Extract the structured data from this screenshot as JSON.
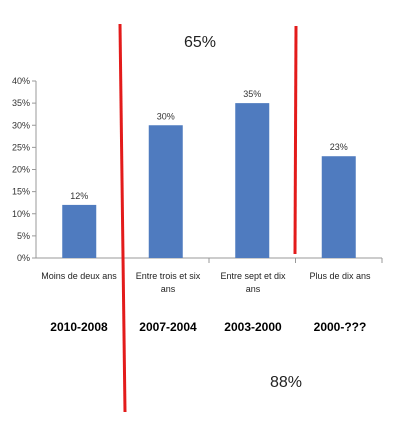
{
  "chart_data": {
    "type": "bar",
    "categories": [
      "Moins de deux ans",
      "Entre trois et six ans",
      "Entre sept et dix ans",
      "Plus de dix ans"
    ],
    "values": [
      12,
      30,
      35,
      23
    ],
    "value_labels": [
      "12%",
      "30%",
      "35%",
      "23%"
    ],
    "ylim": [
      0,
      40
    ],
    "yticks": [
      "0%",
      "5%",
      "10%",
      "15%",
      "20%",
      "25%",
      "30%",
      "35%",
      "40%"
    ],
    "grid": false,
    "bar_color": "#4f7bbf",
    "divider_color": "#e31b1b"
  },
  "periods": [
    "2010-2008",
    "2007-2004",
    "2003-2000",
    "2000-???"
  ],
  "annotations": {
    "top": "65%",
    "bottom": "88%"
  }
}
